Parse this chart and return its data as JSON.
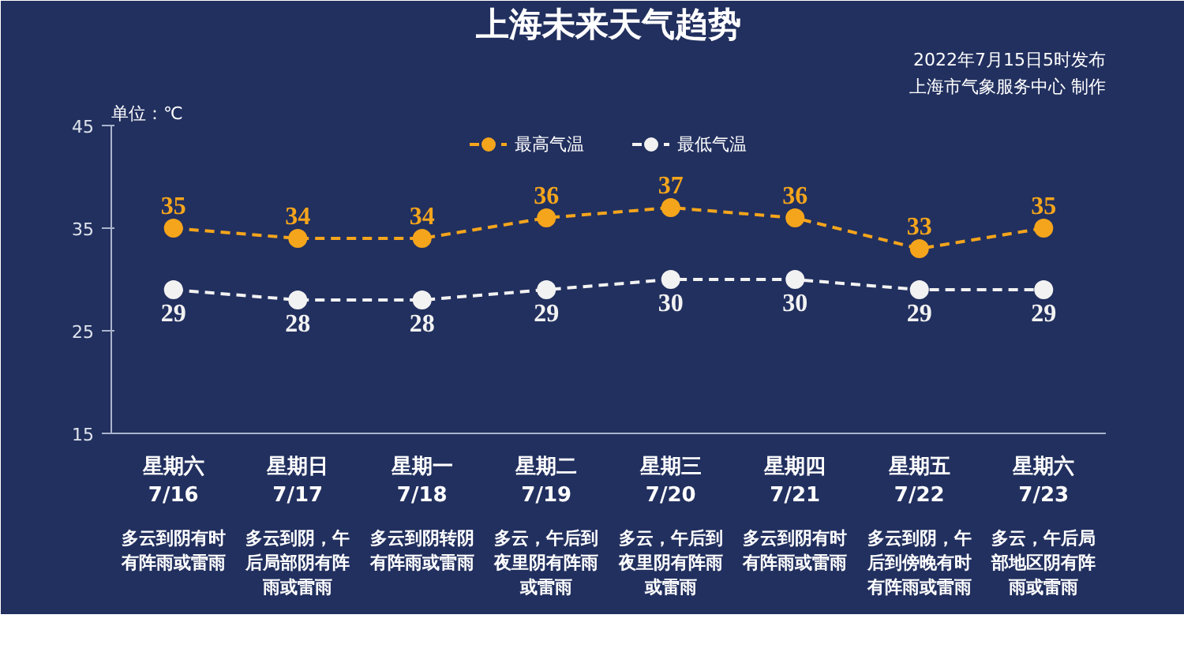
{
  "chart_data": {
    "type": "line",
    "title": "上海未来天气趋势",
    "subtitle": "2022年7月15日5时发布",
    "ylabel": "单位：℃",
    "categories": [
      "星期六\n7/16",
      "星期日\n7/17",
      "星期一\n7/18",
      "星期二\n7/19",
      "星期三\n7/20",
      "星期四\n7/21",
      "星期五\n7/22",
      "星期六\n7/23"
    ],
    "series": [
      {
        "name": "最高气温",
        "color": "#f5a51c",
        "values": [
          35,
          34,
          34,
          36,
          37,
          36,
          33,
          35
        ]
      },
      {
        "name": "最低气温",
        "color": "#f2f2f2",
        "values": [
          29,
          28,
          28,
          29,
          30,
          30,
          29,
          29
        ]
      }
    ],
    "ylim": [
      15,
      45
    ],
    "yticks": [
      15,
      25,
      35,
      45
    ],
    "data_labels": true,
    "marker": "circle",
    "line_style": "dashed",
    "legend": "top",
    "grid": false,
    "annotations": [
      "上海市气象服务中心 制作",
      "多云到阴有时有阵雨或雷雨",
      "多云到阴，午后局部阴有阵雨或雷雨",
      "多云到阴转阴有阵雨或雷雨",
      "多云，午后到夜里阴有阵雨或雷雨",
      "多云，午后到夜里阴有阵雨或雷雨",
      "多云到阴有时有阵雨或雷雨",
      "多云到阴，午后到傍晚有时有阵雨或雷雨",
      "多云，午后局部地区阴有阵雨或雷雨"
    ]
  }
}
